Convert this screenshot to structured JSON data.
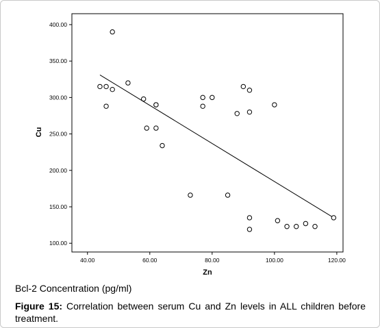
{
  "chart_data": {
    "type": "scatter",
    "xlabel": "Zn",
    "ylabel": "Cu",
    "xlim": [
      35,
      122
    ],
    "ylim": [
      88,
      415
    ],
    "xticks": [
      {
        "value": 40,
        "label": "40.00"
      },
      {
        "value": 60,
        "label": "60.00"
      },
      {
        "value": 80,
        "label": "80.00"
      },
      {
        "value": 100,
        "label": "100.00"
      },
      {
        "value": 120,
        "label": "120.00"
      }
    ],
    "yticks": [
      {
        "value": 100,
        "label": "100.00"
      },
      {
        "value": 150,
        "label": "150.00"
      },
      {
        "value": 200,
        "label": "200.00"
      },
      {
        "value": 250,
        "label": "250.00"
      },
      {
        "value": 300,
        "label": "300.00"
      },
      {
        "value": 350,
        "label": "350.00"
      },
      {
        "value": 400,
        "label": "400.00"
      }
    ],
    "grid": false,
    "points": [
      {
        "x": 44,
        "y": 315
      },
      {
        "x": 46,
        "y": 315
      },
      {
        "x": 46,
        "y": 288
      },
      {
        "x": 48,
        "y": 311
      },
      {
        "x": 48,
        "y": 390
      },
      {
        "x": 53,
        "y": 320
      },
      {
        "x": 58,
        "y": 298
      },
      {
        "x": 59,
        "y": 258
      },
      {
        "x": 62,
        "y": 290
      },
      {
        "x": 62,
        "y": 290
      },
      {
        "x": 62,
        "y": 258
      },
      {
        "x": 64,
        "y": 234
      },
      {
        "x": 73,
        "y": 166
      },
      {
        "x": 77,
        "y": 300
      },
      {
        "x": 77,
        "y": 288
      },
      {
        "x": 80,
        "y": 300
      },
      {
        "x": 85,
        "y": 166
      },
      {
        "x": 88,
        "y": 278
      },
      {
        "x": 90,
        "y": 315
      },
      {
        "x": 92,
        "y": 310
      },
      {
        "x": 92,
        "y": 280
      },
      {
        "x": 92,
        "y": 135
      },
      {
        "x": 92,
        "y": 119
      },
      {
        "x": 100,
        "y": 290
      },
      {
        "x": 101,
        "y": 131
      },
      {
        "x": 104,
        "y": 123
      },
      {
        "x": 107,
        "y": 123
      },
      {
        "x": 110,
        "y": 127
      },
      {
        "x": 113,
        "y": 123
      },
      {
        "x": 119,
        "y": 135
      }
    ],
    "trendline": {
      "x0": 44,
      "y0": 331,
      "x1": 119,
      "y1": 135
    }
  },
  "note": "Bcl-2 Concentration (pg/ml)",
  "caption": {
    "label": "Figure 15:",
    "text": " Correlation between serum Cu and Zn levels in ALL children before treatment."
  }
}
